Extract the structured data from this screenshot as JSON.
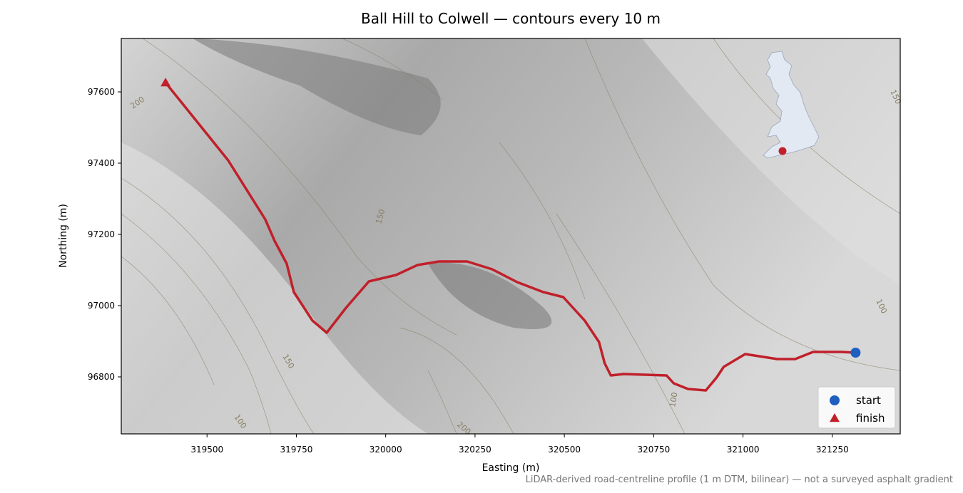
{
  "chart_data": {
    "type": "line",
    "title": "Ball Hill to Colwell — contours every 10 m",
    "xlabel": "Easting (m)",
    "ylabel": "Northing (m)",
    "footnote": "LiDAR-derived road-centreline profile (1 m DTM, bilinear) — not a surveyed asphalt gradient",
    "xlim": [
      319260,
      321440
    ],
    "ylim": [
      96640,
      97750
    ],
    "xticks": [
      319500,
      319750,
      320000,
      320250,
      320500,
      320750,
      321000,
      321250
    ],
    "yticks": [
      96800,
      97000,
      97200,
      97400,
      97600
    ],
    "route": {
      "color": "#c0202a",
      "x": [
        319384,
        319559,
        319663,
        319689,
        319723,
        319743,
        319795,
        319835,
        319889,
        319953,
        320029,
        320089,
        320149,
        320228,
        320298,
        320368,
        320441,
        320497,
        320557,
        320597,
        320613,
        320630,
        320666,
        320786,
        320806,
        320846,
        320896,
        320926,
        320946,
        321006,
        321096,
        321146,
        321196,
        321240,
        321275,
        321315
      ],
      "y": [
        97626,
        97408,
        97242,
        97182,
        97118,
        97038,
        96958,
        96924,
        96994,
        97068,
        97086,
        97114,
        97124,
        97124,
        97102,
        97066,
        97038,
        97024,
        96958,
        96898,
        96838,
        96804,
        96808,
        96804,
        96782,
        96766,
        96762,
        96798,
        96828,
        96864,
        96850,
        96850,
        96870,
        96870,
        96870,
        96868
      ]
    },
    "series": [
      {
        "name": "start",
        "color": "#1f5fbf",
        "marker": "circle",
        "x": [
          321315
        ],
        "y": [
          96868
        ]
      },
      {
        "name": "finish",
        "color": "#c0202a",
        "marker": "triangle",
        "x": [
          319384
        ],
        "y": [
          97626
        ]
      }
    ],
    "contour_labels": [
      200,
      150,
      150,
      100,
      200,
      100,
      100,
      150
    ],
    "legend": "lower right"
  }
}
